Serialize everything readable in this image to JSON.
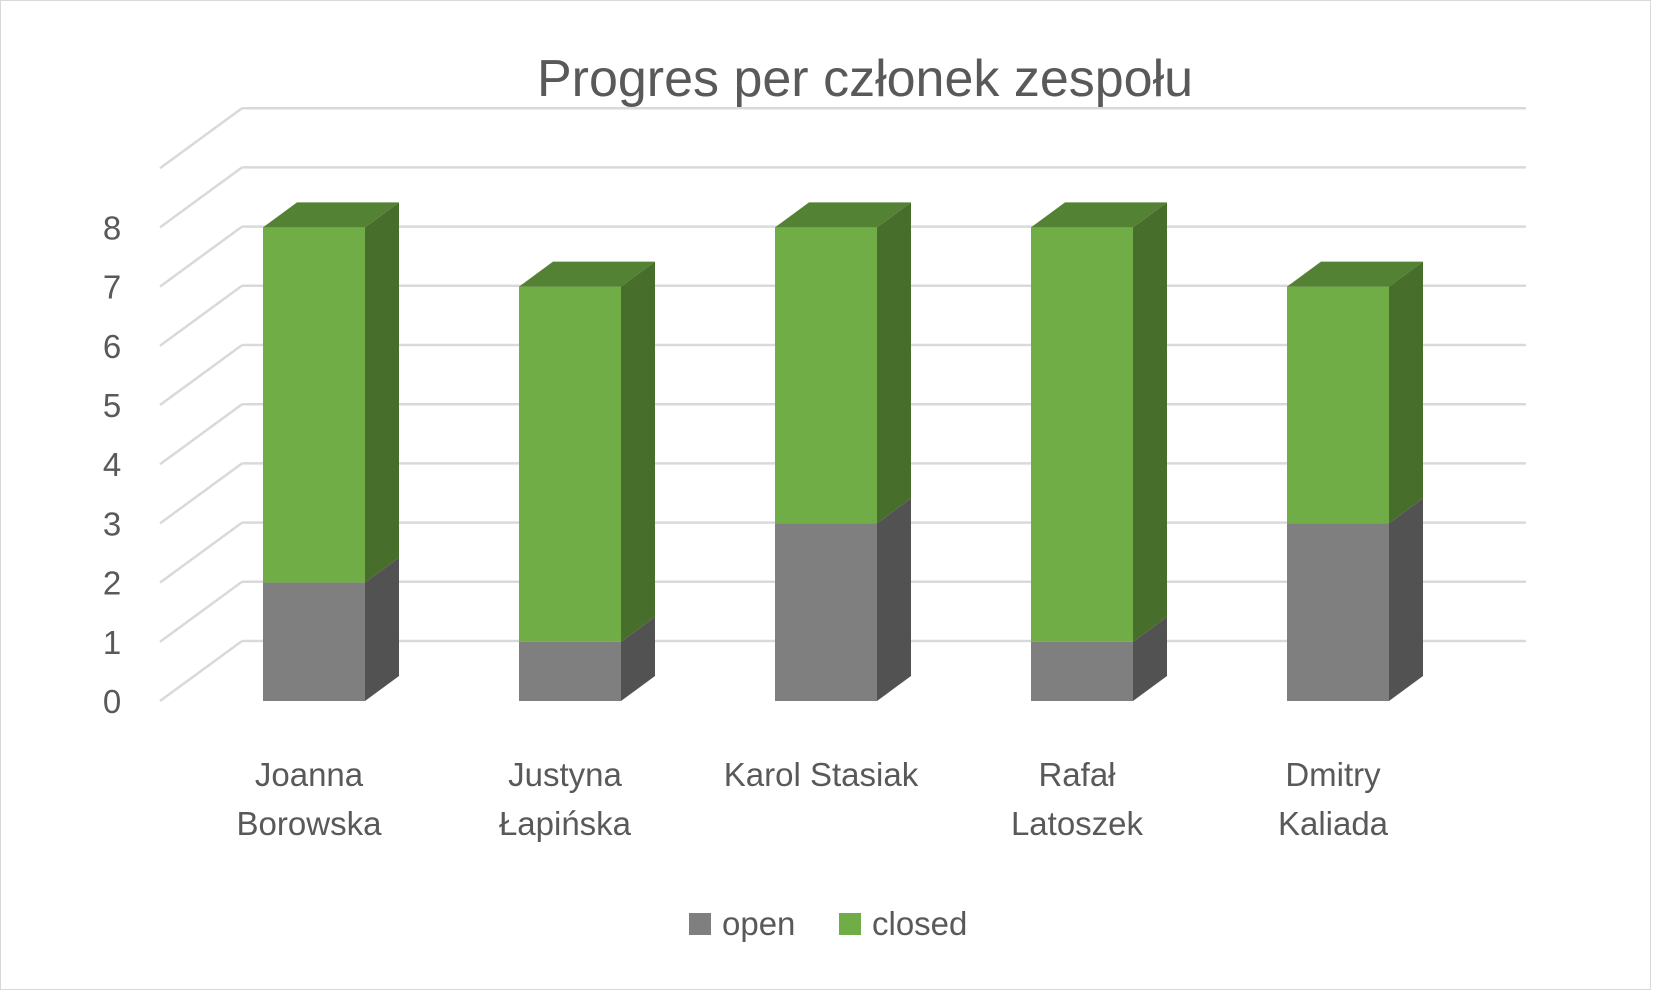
{
  "chart_data": {
    "type": "bar",
    "stacked": true,
    "three_d": true,
    "title": "Progres per członek zespołu",
    "xlabel": "",
    "ylabel": "",
    "ylim": [
      0,
      8
    ],
    "yticks": [
      "0",
      "1",
      "2",
      "3",
      "4",
      "5",
      "6",
      "7",
      "8"
    ],
    "grid": true,
    "legend_position": "bottom",
    "categories": [
      [
        "Joanna",
        "Borowska"
      ],
      [
        "Justyna",
        "Łapińska"
      ],
      [
        "Karol Stasiak"
      ],
      [
        "Rafał",
        "Latoszek"
      ],
      [
        "Dmitry",
        "Kaliada"
      ]
    ],
    "series": [
      {
        "name": "open",
        "values": [
          2,
          1,
          3,
          1,
          3
        ],
        "color": "#7f7f7f",
        "side_color": "#525252",
        "top_color": "#6b6b6b"
      },
      {
        "name": "closed",
        "values": [
          6,
          6,
          5,
          7,
          4
        ],
        "color": "#70ad47",
        "side_color": "#476e2b",
        "top_color": "#548235"
      }
    ],
    "gridline_color": "#d9d9d9",
    "text_color": "#595959"
  }
}
